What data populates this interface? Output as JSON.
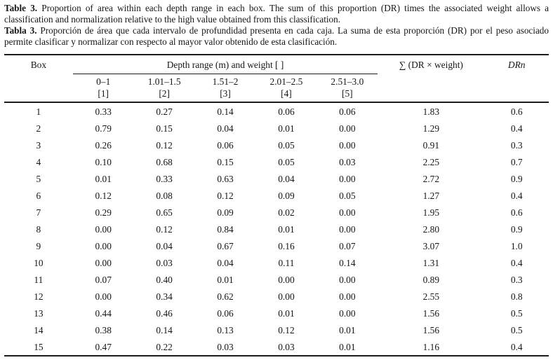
{
  "caption": {
    "en_label": "Table 3.",
    "en_text": " Proportion of area within each depth range in each box. The sum of this proportion (DR) times the associated weight allows a classification and normalization relative to the high value obtained from this classification.",
    "es_label": "Tabla 3.",
    "es_text": " Proporción de área que cada intervalo de profundidad presenta en cada caja. La suma de esta proporción (DR) por el peso asociado permite clasificar y normalizar con respecto al mayor valor obtenido de esta clasificación."
  },
  "table": {
    "col_box": "Box",
    "col_depth_group": "Depth range (m) and weight [ ]",
    "col_sum": "∑ (DR × weight)",
    "col_drn": "DRn",
    "depth_cols": [
      {
        "range": "0–1",
        "weight": "[1]"
      },
      {
        "range": "1.01–1.5",
        "weight": "[2]"
      },
      {
        "range": "1.51–2",
        "weight": "[3]"
      },
      {
        "range": "2.01–2.5",
        "weight": "[4]"
      },
      {
        "range": "2.51–3.0",
        "weight": "[5]"
      }
    ],
    "rows": [
      {
        "box": "1",
        "values": [
          "0.33",
          "0.27",
          "0.14",
          "0.06",
          "0.06"
        ],
        "sum": "1.83",
        "drn": "0.6"
      },
      {
        "box": "2",
        "values": [
          "0.79",
          "0.15",
          "0.04",
          "0.01",
          "0.00"
        ],
        "sum": "1.29",
        "drn": "0.4"
      },
      {
        "box": "3",
        "values": [
          "0.26",
          "0.12",
          "0.06",
          "0.05",
          "0.00"
        ],
        "sum": "0.91",
        "drn": "0.3"
      },
      {
        "box": "4",
        "values": [
          "0.10",
          "0.68",
          "0.15",
          "0.05",
          "0.03"
        ],
        "sum": "2.25",
        "drn": "0.7"
      },
      {
        "box": "5",
        "values": [
          "0.01",
          "0.33",
          "0.63",
          "0.04",
          "0.00"
        ],
        "sum": "2.72",
        "drn": "0.9"
      },
      {
        "box": "6",
        "values": [
          "0.12",
          "0.08",
          "0.12",
          "0.09",
          "0.05"
        ],
        "sum": "1.27",
        "drn": "0.4"
      },
      {
        "box": "7",
        "values": [
          "0.29",
          "0.65",
          "0.09",
          "0.02",
          "0.00"
        ],
        "sum": "1.95",
        "drn": "0.6"
      },
      {
        "box": "8",
        "values": [
          "0.00",
          "0.12",
          "0.84",
          "0.01",
          "0.00"
        ],
        "sum": "2.80",
        "drn": "0.9"
      },
      {
        "box": "9",
        "values": [
          "0.00",
          "0.04",
          "0.67",
          "0.16",
          "0.07"
        ],
        "sum": "3.07",
        "drn": "1.0"
      },
      {
        "box": "10",
        "values": [
          "0.00",
          "0.03",
          "0.04",
          "0.11",
          "0.14"
        ],
        "sum": "1.31",
        "drn": "0.4"
      },
      {
        "box": "11",
        "values": [
          "0.07",
          "0.40",
          "0.01",
          "0.00",
          "0.00"
        ],
        "sum": "0.89",
        "drn": "0.3"
      },
      {
        "box": "12",
        "values": [
          "0.00",
          "0.34",
          "0.62",
          "0.00",
          "0.00"
        ],
        "sum": "2.55",
        "drn": "0.8"
      },
      {
        "box": "13",
        "values": [
          "0.44",
          "0.46",
          "0.06",
          "0.01",
          "0.00"
        ],
        "sum": "1.56",
        "drn": "0.5"
      },
      {
        "box": "14",
        "values": [
          "0.38",
          "0.14",
          "0.13",
          "0.12",
          "0.01"
        ],
        "sum": "1.56",
        "drn": "0.5"
      },
      {
        "box": "15",
        "values": [
          "0.47",
          "0.22",
          "0.03",
          "0.03",
          "0.01"
        ],
        "sum": "1.16",
        "drn": "0.4"
      }
    ]
  }
}
